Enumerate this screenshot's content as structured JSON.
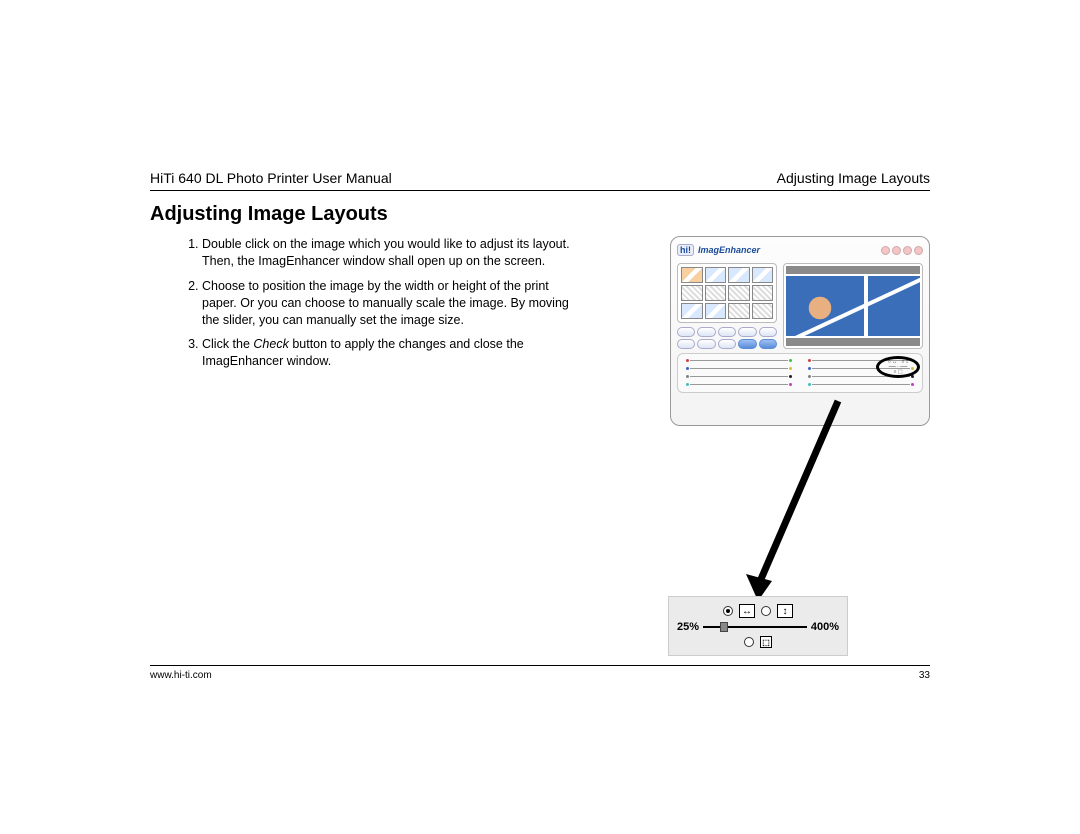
{
  "header": {
    "left": "HiTi 640 DL Photo Printer User Manual",
    "right": "Adjusting Image Layouts"
  },
  "section_title": "Adjusting Image Layouts",
  "instructions": [
    "Double click on the image which you would like to adjust its layout. Then, the ImagEnhancer window shall open up on the screen.",
    "Choose to position the image by the width or height of the print paper. Or you can choose to manually scale the image. By moving the slider, you can manually set the image size.",
    "Click the Check button to apply the changes and close the ImagEnhancer window."
  ],
  "check_word": "Check",
  "app": {
    "logo": "hi!",
    "title": "ImagEnhancer"
  },
  "zoom": {
    "min_label": "25%",
    "max_label": "400%",
    "width_icon": "↔",
    "height_icon": "↕",
    "manual_icon": "⬚"
  },
  "slider_colors": {
    "rows": [
      [
        "#d04040",
        "#40c040"
      ],
      [
        "#4060d0",
        "#d0c040"
      ],
      [
        "#808080",
        "#202020"
      ],
      [
        "#40c0c0",
        "#c040c0"
      ]
    ]
  },
  "footer": {
    "url": "www.hi-ti.com",
    "page": "33"
  }
}
